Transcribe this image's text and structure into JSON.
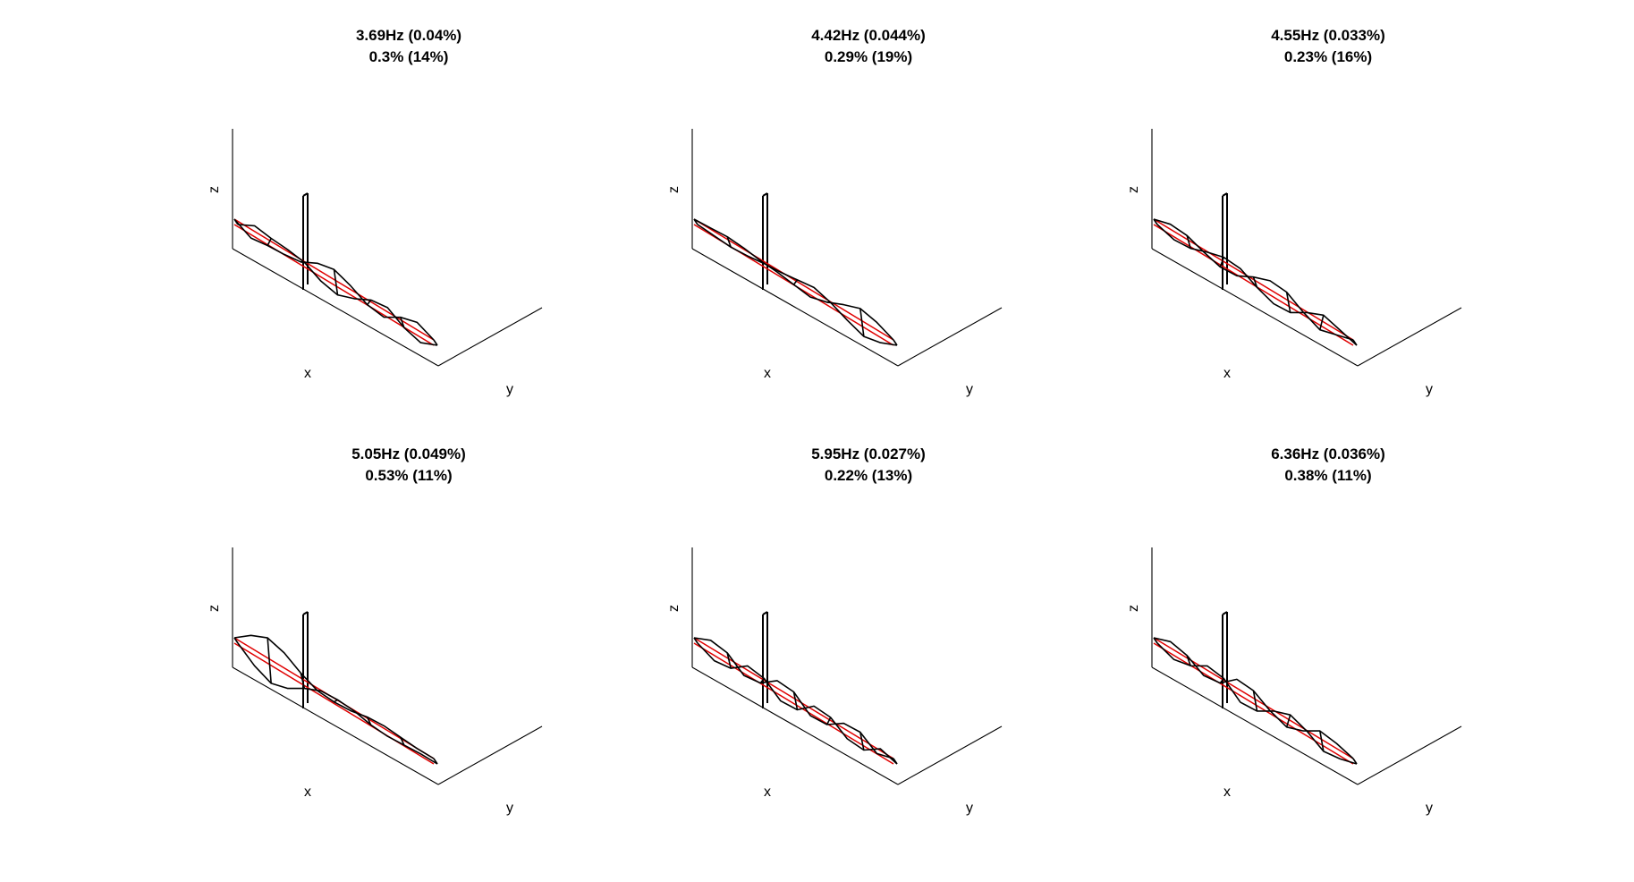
{
  "figure": {
    "panels": [
      {
        "title_line1": "3.69Hz (0.04%)",
        "title_line2": "0.3% (14%)",
        "x_label": "x",
        "y_label": "y",
        "z_label": "z"
      },
      {
        "title_line1": "4.42Hz (0.044%)",
        "title_line2": "0.29% (19%)",
        "x_label": "x",
        "y_label": "y",
        "z_label": "z"
      },
      {
        "title_line1": "4.55Hz (0.033%)",
        "title_line2": "0.23% (16%)",
        "x_label": "x",
        "y_label": "y",
        "z_label": "z"
      },
      {
        "title_line1": "5.05Hz (0.049%)",
        "title_line2": "0.53% (11%)",
        "x_label": "x",
        "y_label": "y",
        "z_label": "z"
      },
      {
        "title_line1": "5.95Hz (0.027%)",
        "title_line2": "0.22% (13%)",
        "x_label": "x",
        "y_label": "y",
        "z_label": "z"
      },
      {
        "title_line1": "6.36Hz (0.036%)",
        "title_line2": "0.38% (11%)",
        "x_label": "x",
        "y_label": "y",
        "z_label": "z"
      }
    ],
    "colors": {
      "undeformed": "#e00000",
      "deformed": "#000000",
      "axes": "#000000"
    },
    "mode_shapes": [
      [
        0,
        -0.35,
        -0.25,
        -0.2,
        -0.1,
        0.25,
        0.4,
        0.15,
        -0.2,
        -0.3,
        0.1,
        0.3,
        0
      ],
      [
        0,
        0.05,
        0.1,
        0.05,
        -0.05,
        -0.1,
        -0.2,
        -0.3,
        -0.1,
        0.2,
        0.45,
        0.3,
        0
      ],
      [
        0,
        0.2,
        0.15,
        -0.1,
        -0.3,
        -0.25,
        0.1,
        0.35,
        0.3,
        -0.1,
        -0.4,
        -0.2,
        0
      ],
      [
        0,
        0.5,
        0.8,
        0.6,
        0.2,
        -0.1,
        -0.15,
        -0.1,
        0.05,
        0.1,
        0.05,
        0,
        0
      ],
      [
        0,
        0.3,
        0.2,
        -0.3,
        -0.2,
        0.3,
        0.25,
        -0.3,
        -0.25,
        0.2,
        0.25,
        -0.2,
        0
      ],
      [
        0,
        0.25,
        0.1,
        -0.3,
        -0.2,
        0.35,
        0.3,
        -0.1,
        -0.35,
        -0.1,
        0.3,
        0.2,
        0
      ]
    ]
  }
}
